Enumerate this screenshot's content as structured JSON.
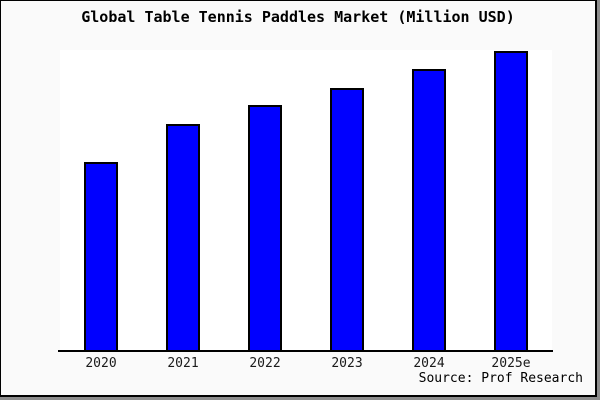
{
  "chart_data": {
    "type": "bar",
    "title": "Global Table Tennis Paddles Market (Million USD)",
    "categories": [
      "2020",
      "2021",
      "2022",
      "2023",
      "2024",
      "2025e"
    ],
    "values": [
      62.7,
      75.3,
      81.7,
      87.3,
      93.7,
      99.7
    ],
    "values_note": "y-axis has no tick labels in the chart; values are estimated relative heights as percent of the tallest bar scale (plot height), baseline 0",
    "xlabel": "",
    "ylabel": "",
    "ylim": [
      0,
      100
    ],
    "grid": false,
    "legend": false,
    "source": "Source: Prof Research",
    "bar_color": "#0000ff",
    "bar_border_color": "#000000"
  },
  "colors": {
    "page_background": "#fafafa",
    "plot_background": "#ffffff",
    "frame_border": "#000000",
    "frame_shadow": "#8c8c8c",
    "axis": "#000000",
    "title_text": "#000000",
    "label_text": "#1a1a1a"
  }
}
